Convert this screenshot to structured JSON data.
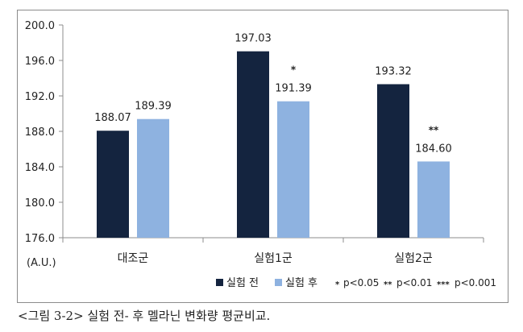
{
  "chart_data": {
    "type": "bar",
    "categories": [
      "대조군",
      "실험1군",
      "실험2군"
    ],
    "series": [
      {
        "name": "실험 전",
        "values": [
          188.07,
          197.03,
          193.32
        ],
        "labels": [
          "188.07",
          "197.03",
          "193.32"
        ],
        "color": "#14243f"
      },
      {
        "name": "실험 후",
        "values": [
          189.39,
          191.39,
          184.6
        ],
        "labels": [
          "189.39",
          "191.39",
          "184.60"
        ],
        "color": "#8eb2e0"
      }
    ],
    "ylim": [
      176.0,
      200.0
    ],
    "yticks": [
      "176.0",
      "180.0",
      "184.0",
      "188.0",
      "192.0",
      "196.0",
      "200.0"
    ],
    "ylabel": "(A.U.)",
    "xlabel": "",
    "title": "",
    "grid": false,
    "legend_position": "bottom-right",
    "significance_marks": [
      {
        "category": "실험1군",
        "series": "실험 후",
        "mark": "*"
      },
      {
        "category": "실험2군",
        "series": "실험 후",
        "mark": "**"
      }
    ],
    "significance_legend": [
      {
        "mark": "*",
        "label": "p<0.05"
      },
      {
        "mark": "**",
        "label": "p<0.01"
      },
      {
        "mark": "***",
        "label": "p<0.001"
      }
    ]
  },
  "caption": "<그림 3-2> 실험 전- 후 멜라닌 변화량 평균비교."
}
